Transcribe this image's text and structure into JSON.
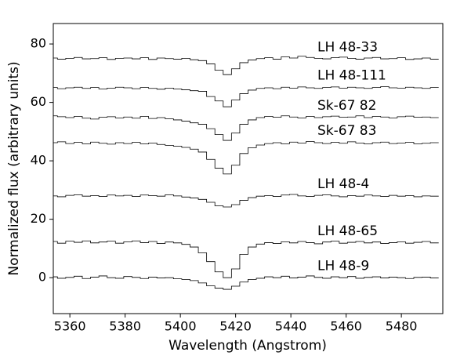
{
  "chart_data": {
    "type": "line",
    "x_label": "Wavelength (Angstrom)",
    "y_label": "Normalized flux (arbitrary units)",
    "xlim": [
      5354,
      5495
    ],
    "ylim": [
      -12.3,
      87
    ],
    "xticks": [
      5360,
      5380,
      5400,
      5420,
      5440,
      5460,
      5480
    ],
    "yticks": [
      0,
      20,
      40,
      60,
      80
    ],
    "step": true,
    "x": [
      5354,
      5357,
      5360,
      5363,
      5366,
      5369,
      5372,
      5375,
      5378,
      5381,
      5384,
      5387,
      5390,
      5393,
      5396,
      5399,
      5402,
      5405,
      5408,
      5411,
      5414,
      5417,
      5420,
      5423,
      5426,
      5429,
      5432,
      5435,
      5438,
      5441,
      5444,
      5447,
      5450,
      5453,
      5456,
      5459,
      5462,
      5465,
      5468,
      5471,
      5474,
      5477,
      5480,
      5483,
      5486,
      5489,
      5492
    ],
    "series": [
      {
        "name": "LH 48-33",
        "color": "#000000",
        "values": [
          75.2,
          74.8,
          75.1,
          75.4,
          74.9,
          75.0,
          75.3,
          74.7,
          75.1,
          75.2,
          74.9,
          75.3,
          74.7,
          75.2,
          75.0,
          74.8,
          75.1,
          74.6,
          74.3,
          73.2,
          71.0,
          69.5,
          71.5,
          73.6,
          74.5,
          75.0,
          75.3,
          74.8,
          75.6,
          75.2,
          75.8,
          75.4,
          75.1,
          74.9,
          75.3,
          75.5,
          75.1,
          74.8,
          75.2,
          75.4,
          74.9,
          75.0,
          75.3,
          74.7,
          74.9,
          75.2,
          74.8
        ]
      },
      {
        "name": "LH 48-111",
        "color": "#000000",
        "values": [
          65.1,
          64.7,
          65.0,
          65.2,
          64.8,
          65.1,
          64.6,
          64.9,
          65.2,
          65.0,
          64.7,
          65.1,
          64.8,
          64.5,
          64.9,
          64.6,
          64.3,
          64.0,
          63.8,
          62.0,
          60.5,
          58.5,
          60.8,
          63.0,
          64.2,
          64.8,
          65.0,
          64.7,
          65.2,
          64.9,
          65.3,
          65.0,
          64.8,
          65.1,
          65.3,
          64.9,
          65.2,
          65.0,
          64.8,
          65.1,
          65.4,
          65.0,
          64.9,
          65.2,
          65.0,
          64.8,
          65.1
        ]
      },
      {
        "name": "Sk-67 82",
        "color": "#000000",
        "values": [
          55.4,
          55.1,
          54.8,
          55.2,
          54.6,
          54.3,
          54.9,
          55.1,
          54.7,
          55.0,
          54.6,
          55.2,
          54.5,
          54.8,
          54.4,
          54.0,
          53.6,
          53.0,
          52.5,
          51.0,
          49.0,
          47.0,
          49.5,
          52.5,
          54.0,
          54.8,
          55.2,
          54.9,
          55.4,
          55.0,
          54.7,
          55.2,
          54.8,
          55.1,
          55.3,
          54.9,
          55.0,
          55.4,
          54.8,
          55.2,
          55.0,
          54.7,
          55.1,
          55.3,
          54.9,
          55.0,
          54.8
        ]
      },
      {
        "name": "Sk-67 83",
        "color": "#000000",
        "values": [
          46.2,
          46.5,
          45.9,
          46.3,
          45.8,
          46.4,
          46.0,
          45.7,
          46.2,
          45.9,
          46.3,
          45.8,
          46.1,
          45.6,
          45.3,
          45.0,
          44.6,
          44.0,
          43.0,
          40.5,
          37.5,
          35.5,
          38.5,
          42.5,
          44.5,
          45.4,
          45.9,
          46.2,
          45.8,
          46.4,
          46.1,
          46.6,
          46.2,
          45.9,
          46.3,
          46.0,
          46.5,
          46.1,
          45.8,
          46.2,
          46.4,
          45.9,
          46.1,
          46.3,
          45.8,
          46.0,
          46.2
        ]
      },
      {
        "name": "LH 48-4",
        "color": "#000000",
        "values": [
          28.0,
          27.7,
          28.2,
          28.4,
          27.9,
          28.1,
          27.8,
          28.3,
          28.0,
          28.2,
          27.8,
          28.3,
          28.1,
          27.9,
          28.4,
          28.0,
          27.6,
          27.3,
          26.8,
          25.8,
          24.6,
          24.2,
          25.0,
          26.5,
          27.4,
          27.9,
          28.1,
          27.8,
          28.3,
          28.5,
          28.0,
          27.8,
          28.2,
          28.4,
          28.0,
          27.7,
          28.1,
          27.9,
          28.3,
          28.0,
          27.8,
          28.2,
          27.9,
          28.1,
          27.7,
          28.0,
          27.9
        ]
      },
      {
        "name": "LH 48-65",
        "color": "#000000",
        "values": [
          12.4,
          11.8,
          12.5,
          12.1,
          12.6,
          11.9,
          12.2,
          12.5,
          11.8,
          12.3,
          12.6,
          12.0,
          12.4,
          11.7,
          12.2,
          11.9,
          11.4,
          10.5,
          8.5,
          5.5,
          2.0,
          0.0,
          3.0,
          8.0,
          10.5,
          11.5,
          12.0,
          11.7,
          12.3,
          11.9,
          12.4,
          12.0,
          11.6,
          12.2,
          12.5,
          11.8,
          12.1,
          12.4,
          11.9,
          12.2,
          11.7,
          12.0,
          12.3,
          11.8,
          12.1,
          12.4,
          11.9
        ]
      },
      {
        "name": "LH 48-9",
        "color": "#000000",
        "values": [
          0.3,
          -0.2,
          0.1,
          0.5,
          -0.3,
          0.2,
          0.6,
          0.0,
          -0.2,
          0.4,
          0.1,
          -0.3,
          0.2,
          -0.1,
          0.0,
          -0.4,
          -0.6,
          -1.0,
          -1.8,
          -2.8,
          -3.6,
          -4.0,
          -2.9,
          -1.5,
          -0.6,
          -0.2,
          0.3,
          0.0,
          0.5,
          -0.1,
          0.2,
          0.6,
          0.1,
          -0.2,
          0.3,
          0.0,
          0.4,
          -0.2,
          0.1,
          0.3,
          -0.1,
          0.2,
          0.0,
          -0.3,
          0.1,
          0.2,
          -0.1
        ]
      }
    ]
  }
}
